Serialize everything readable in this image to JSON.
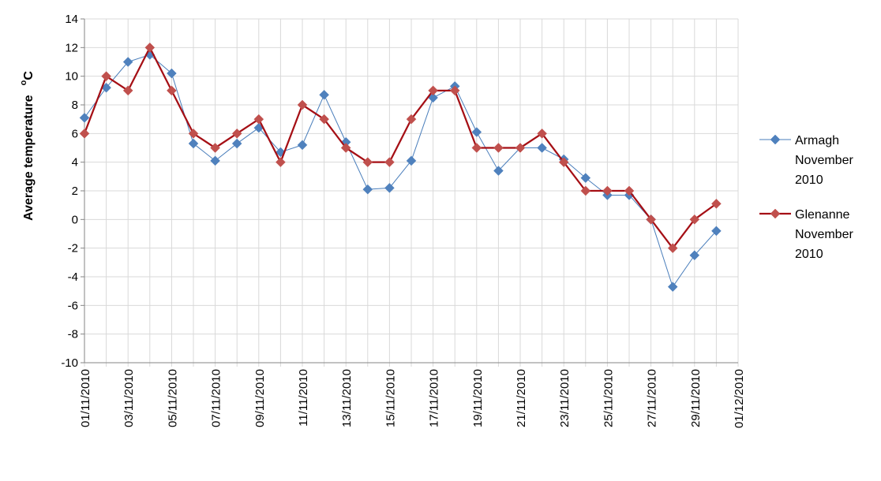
{
  "chart_data": {
    "type": "line",
    "title": "",
    "xlabel": "",
    "ylabel": "Average temperature",
    "ylabel_unit_superscript": "o",
    "ylabel_unit": "C",
    "ylim": [
      -10,
      14
    ],
    "y_ticks": [
      "-10",
      "-8",
      "-6",
      "-4",
      "-2",
      "0",
      "2",
      "4",
      "6",
      "8",
      "10",
      "12",
      "14"
    ],
    "x_tick_labels": [
      "01/11/2010",
      "03/11/2010",
      "05/11/2010",
      "07/11/2010",
      "09/11/2010",
      "11/11/2010",
      "13/11/2010",
      "15/11/2010",
      "17/11/2010",
      "19/11/2010",
      "21/11/2010",
      "23/11/2010",
      "25/11/2010",
      "27/11/2010",
      "29/11/2010",
      "01/12/2010"
    ],
    "grid": "horizontal",
    "legend_position": "right",
    "x": [
      "01/11/2010",
      "02/11/2010",
      "03/11/2010",
      "04/11/2010",
      "05/11/2010",
      "06/11/2010",
      "07/11/2010",
      "08/11/2010",
      "09/11/2010",
      "10/11/2010",
      "11/11/2010",
      "12/11/2010",
      "13/11/2010",
      "14/11/2010",
      "15/11/2010",
      "16/11/2010",
      "17/11/2010",
      "18/11/2010",
      "19/11/2010",
      "20/11/2010",
      "21/11/2010",
      "22/11/2010",
      "23/11/2010",
      "24/11/2010",
      "25/11/2010",
      "26/11/2010",
      "27/11/2010",
      "28/11/2010",
      "29/11/2010",
      "30/11/2010"
    ],
    "series": [
      {
        "name": "Armagh November 2010",
        "legend_lines": [
          "Armagh",
          "November",
          "2010"
        ],
        "color": "#4a7ebb",
        "marker_color": "#4f81bd",
        "line_width": 1,
        "values": [
          7.1,
          9.2,
          11.0,
          11.5,
          10.2,
          5.3,
          4.1,
          5.3,
          6.4,
          4.7,
          5.2,
          8.7,
          5.4,
          2.1,
          2.2,
          4.1,
          8.5,
          9.3,
          6.1,
          3.4,
          5.0,
          5.0,
          4.2,
          2.9,
          1.7,
          1.7,
          0.0,
          -4.7,
          -2.5,
          -0.8
        ]
      },
      {
        "name": "Glenanne November 2010",
        "legend_lines": [
          "Glenanne",
          "November",
          "2010"
        ],
        "color": "#a50f15",
        "marker_color": "#c0504d",
        "line_width": 2.25,
        "values": [
          6,
          10,
          9,
          12,
          9,
          6,
          5,
          6,
          7,
          4,
          8,
          7,
          5,
          4,
          4,
          7,
          9,
          9,
          5,
          5,
          5,
          6,
          4,
          2,
          2,
          2,
          0,
          -2,
          0,
          1.1
        ]
      }
    ]
  }
}
